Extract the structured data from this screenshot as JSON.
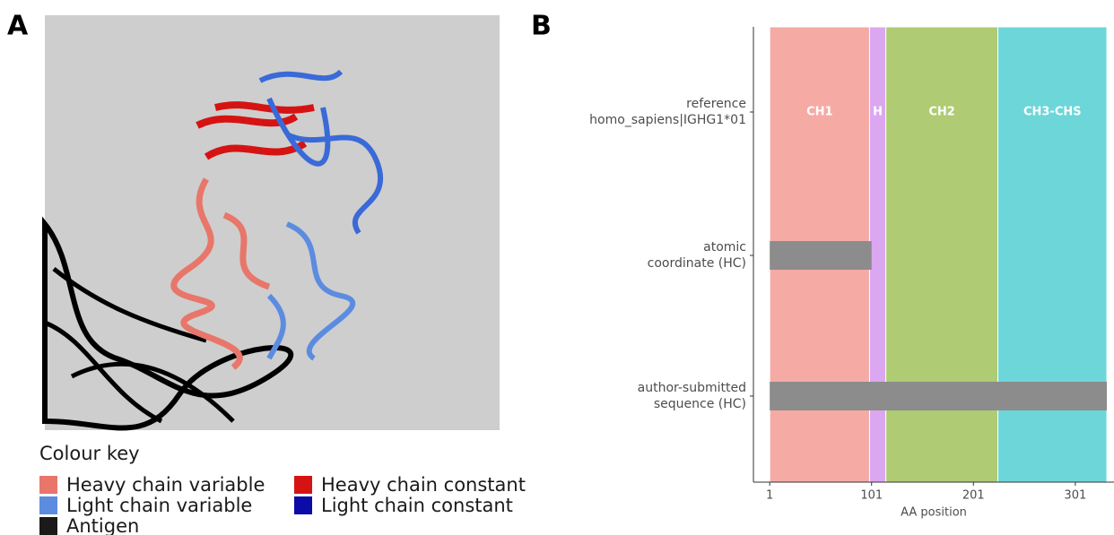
{
  "panel_a": {
    "label": "A",
    "legend_title": "Colour key",
    "legend": [
      {
        "name": "Heavy chain variable",
        "color": "#e8766a"
      },
      {
        "name": "Light chain variable",
        "color": "#5b8ce0"
      },
      {
        "name": "Antigen",
        "color": "#1a1a1a"
      },
      {
        "name": "Heavy chain constant",
        "color": "#d61313"
      },
      {
        "name": "Light chain constant",
        "color": "#0b0ba8"
      }
    ]
  },
  "chart_data": {
    "type": "range",
    "panel_label": "B",
    "xlabel": "AA position",
    "categories": [
      [
        "reference",
        "homo_sapiens|IGHG1*01"
      ],
      [
        "atomic",
        "coordinate (HC)"
      ],
      [
        "author-submitted",
        "sequence (HC)"
      ]
    ],
    "domains": [
      {
        "name": "CH1",
        "start": 1,
        "end": 99,
        "color": "#f5aaa4"
      },
      {
        "name": "H",
        "start": 99,
        "end": 115,
        "color": "#dba7f1"
      },
      {
        "name": "CH2",
        "start": 115,
        "end": 225,
        "color": "#afcb73"
      },
      {
        "name": "CH3-CHS",
        "start": 225,
        "end": 332,
        "color": "#6dd6d9"
      }
    ],
    "ranges": [
      null,
      {
        "start": 1,
        "end": 101
      },
      {
        "start": 1,
        "end": 332
      }
    ],
    "bar_color": "#8c8c8c",
    "xlim": [
      -15,
      339
    ],
    "xticks": [
      1,
      101,
      201,
      301
    ]
  }
}
